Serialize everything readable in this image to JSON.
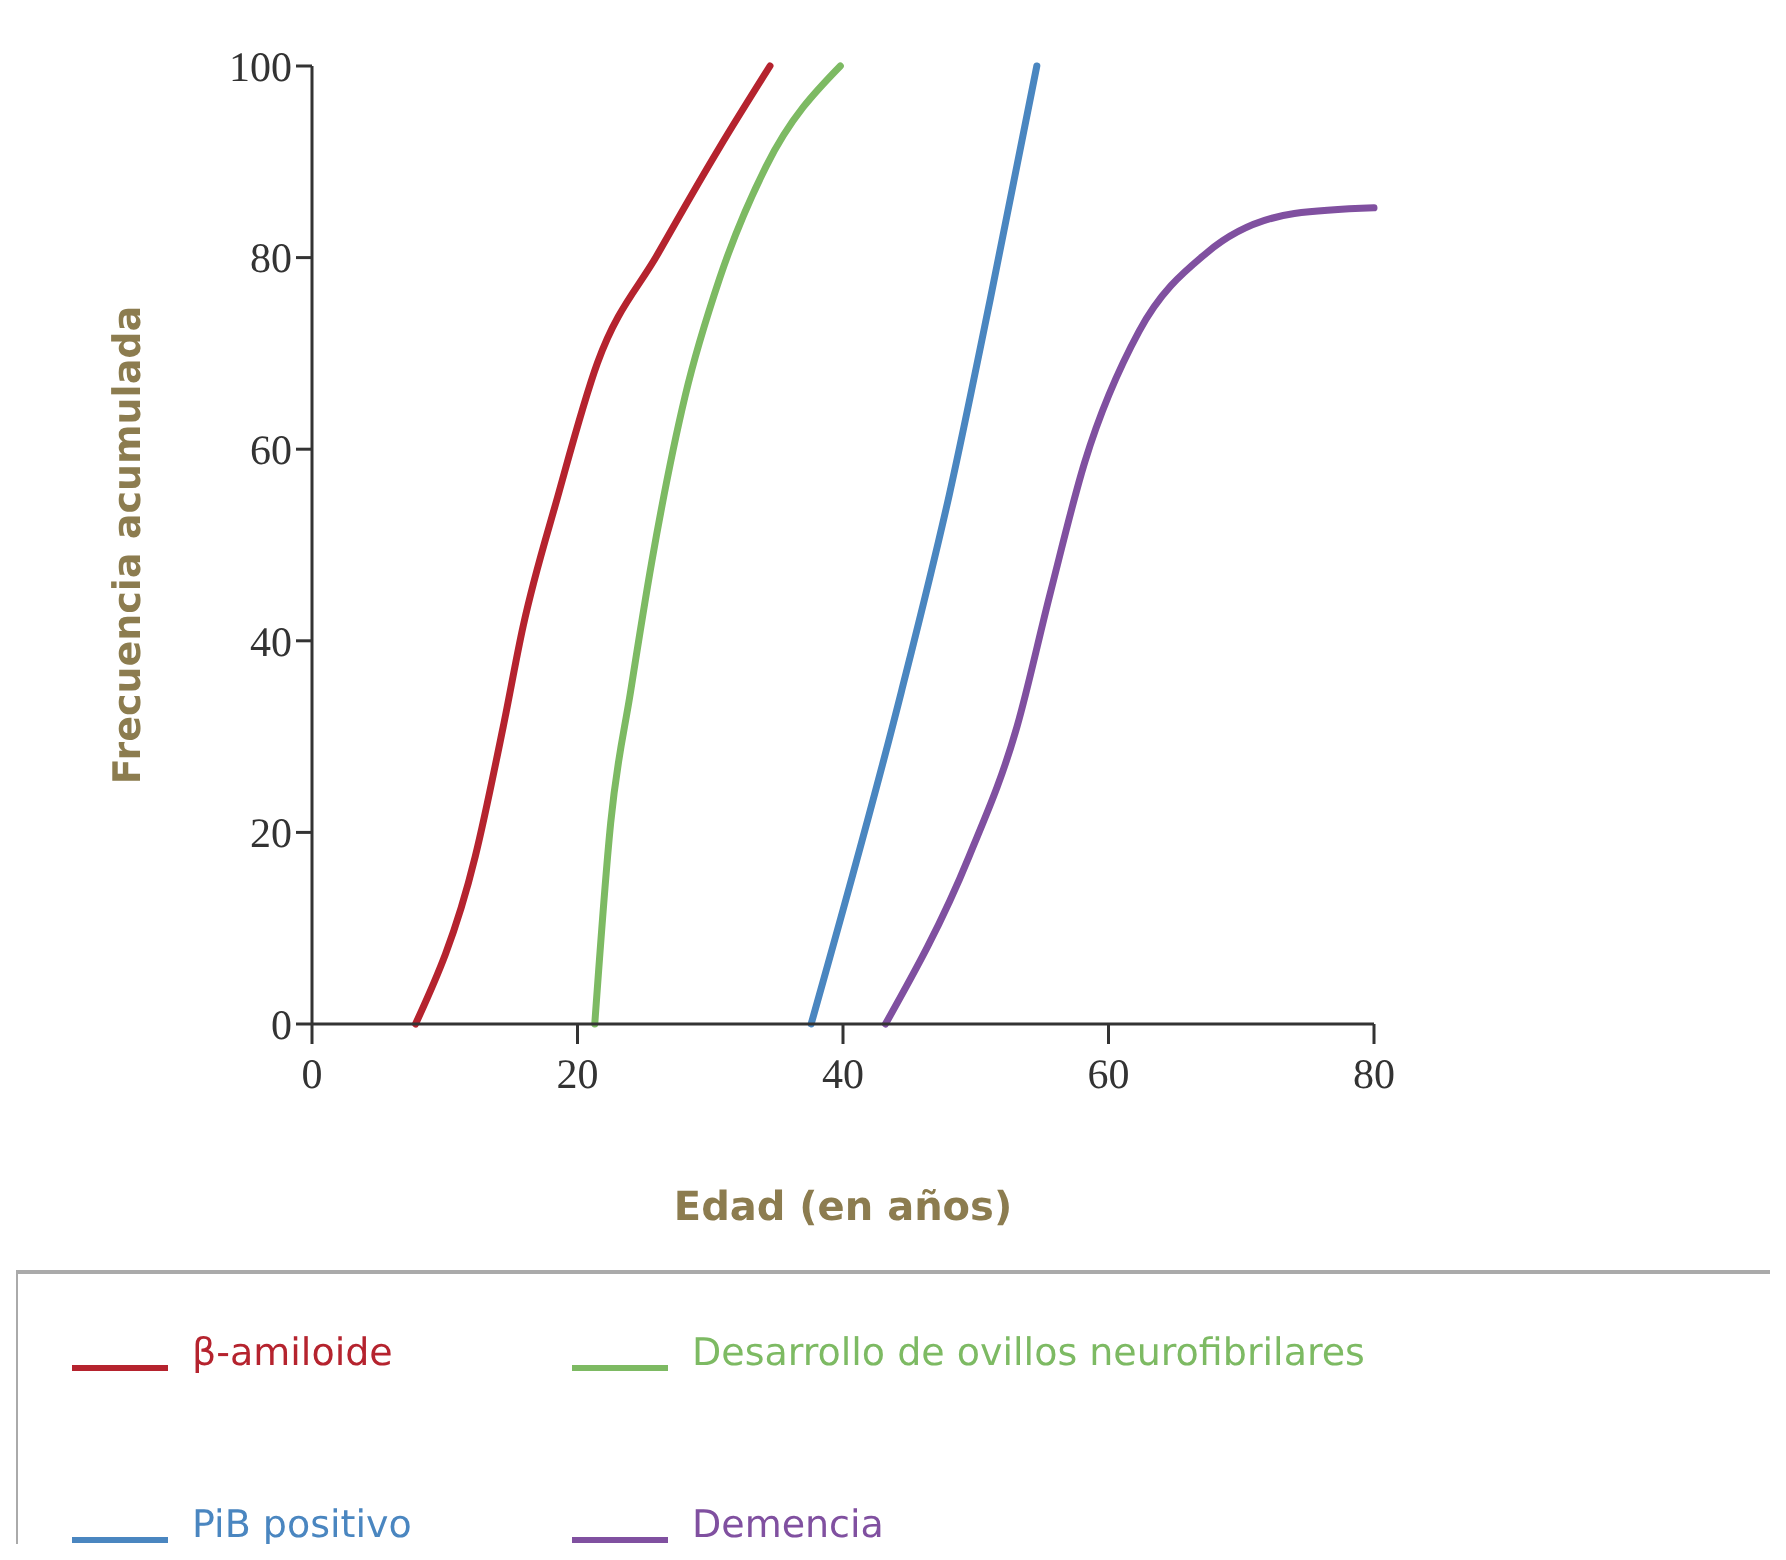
{
  "chart_data": {
    "type": "line",
    "xlabel": "Edad (en años)",
    "ylabel": "Frecuencia acumulada",
    "xlim": [
      0,
      80
    ],
    "ylim": [
      0,
      100
    ],
    "xticks": [
      0,
      20,
      40,
      60,
      80
    ],
    "yticks": [
      0,
      20,
      40,
      60,
      80,
      100
    ],
    "grid": false,
    "legend": "bottom",
    "marker": "none",
    "line_style": "solid",
    "series": [
      {
        "name": "β-amiloide",
        "color": "#b5232e",
        "x": [
          7.8,
          12.3,
          14.4,
          15.9,
          18.5,
          21.5,
          26.1,
          30.7,
          34.5
        ],
        "values": [
          0,
          17.5,
          31,
          41.5,
          55,
          69,
          80.5,
          91.5,
          100
        ]
      },
      {
        "name": "Desarrollo de ovillos neurofibrilares",
        "color": "#7dba63",
        "x": [
          21.3,
          22.5,
          24,
          25.6,
          28.1,
          30.7,
          34.2,
          39.8
        ],
        "values": [
          0,
          21,
          34.7,
          48.3,
          65.5,
          77.8,
          89.5,
          100
        ]
      },
      {
        "name": "PiB positivo",
        "color": "#4a86c0",
        "x": [
          37.6,
          44.4,
          48,
          51.1,
          54.6
        ],
        "values": [
          0,
          34.7,
          55.2,
          75.7,
          100
        ]
      },
      {
        "name": "Demencia",
        "color": "#8050a0",
        "x": [
          43.2,
          49.5,
          53.1,
          55.6,
          58.2,
          62.3,
          67.4,
          74,
          80
        ],
        "values": [
          0,
          17.5,
          31,
          44.9,
          58.6,
          72.3,
          80.5,
          84.6,
          85.2
        ]
      }
    ]
  }
}
